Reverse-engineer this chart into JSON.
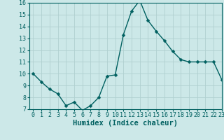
{
  "x": [
    0,
    1,
    2,
    3,
    4,
    5,
    6,
    7,
    8,
    9,
    10,
    11,
    12,
    13,
    14,
    15,
    16,
    17,
    18,
    19,
    20,
    21,
    22,
    23
  ],
  "y": [
    10.0,
    9.3,
    8.7,
    8.3,
    7.3,
    7.6,
    6.9,
    7.3,
    8.0,
    9.8,
    9.9,
    13.3,
    15.3,
    16.2,
    14.5,
    13.6,
    12.8,
    11.9,
    11.2,
    11.0,
    11.0,
    11.0,
    11.0,
    9.5
  ],
  "xlabel": "Humidex (Indice chaleur)",
  "ylim": [
    7,
    16
  ],
  "xlim": [
    -0.5,
    23
  ],
  "bg_color": "#cce8e8",
  "grid_color": "#b0d0d0",
  "line_color": "#006060",
  "marker_color": "#006060",
  "yticks": [
    7,
    8,
    9,
    10,
    11,
    12,
    13,
    14,
    15,
    16
  ],
  "xticks": [
    0,
    1,
    2,
    3,
    4,
    5,
    6,
    7,
    8,
    9,
    10,
    11,
    12,
    13,
    14,
    15,
    16,
    17,
    18,
    19,
    20,
    21,
    22,
    23
  ],
  "xlabel_fontsize": 7.5,
  "tick_fontsize": 6,
  "line_width": 1.0,
  "marker_size": 2.5
}
